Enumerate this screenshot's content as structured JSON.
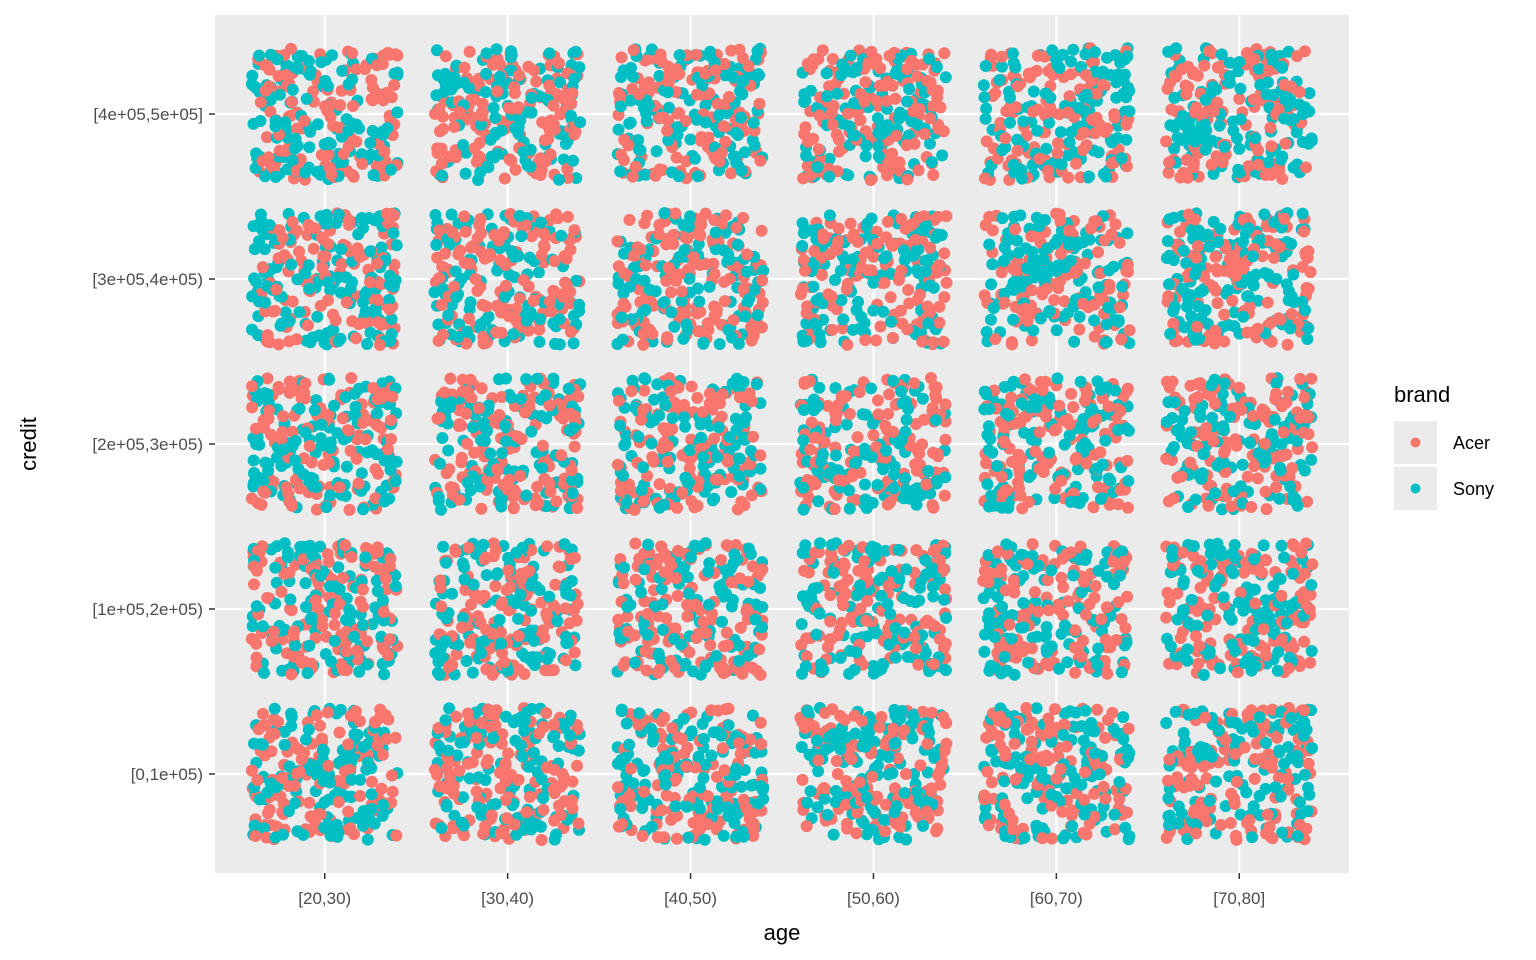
{
  "chart_data": {
    "type": "scatter",
    "title": "",
    "xlabel": "age",
    "ylabel": "credit",
    "x_categories": [
      "[20,30)",
      "[30,40)",
      "[40,50)",
      "[50,60)",
      "[60,70)",
      "[70,80]"
    ],
    "y_categories": [
      "[0,1e+05)",
      "[1e+05,2e+05)",
      "[2e+05,3e+05)",
      "[3e+05,4e+05)",
      "[4e+05,5e+05]"
    ],
    "jitter": "points jittered within each age × credit cell",
    "points_per_cell_approx": 250,
    "series": [
      {
        "name": "Acer",
        "color": "#F8766D"
      },
      {
        "name": "Sony",
        "color": "#00BFC4"
      }
    ],
    "legend": {
      "title": "brand",
      "position": "right"
    },
    "panel_background": "#EBEBEB",
    "grid": true
  }
}
